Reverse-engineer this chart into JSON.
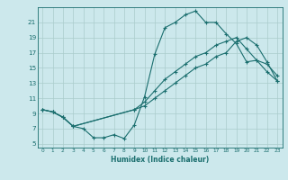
{
  "title": "",
  "xlabel": "Humidex (Indice chaleur)",
  "bg_color": "#cce8ec",
  "grid_color": "#aacccc",
  "line_color": "#1a6e6e",
  "xlim": [
    -0.5,
    23.5
  ],
  "ylim": [
    4.5,
    23.0
  ],
  "xticks": [
    0,
    1,
    2,
    3,
    4,
    5,
    6,
    7,
    8,
    9,
    10,
    11,
    12,
    13,
    14,
    15,
    16,
    17,
    18,
    19,
    20,
    21,
    22,
    23
  ],
  "yticks": [
    5,
    7,
    9,
    11,
    13,
    15,
    17,
    19,
    21
  ],
  "curve1_x": [
    0,
    1,
    2,
    3,
    4,
    5,
    6,
    7,
    8,
    9,
    10,
    11,
    12,
    13,
    14,
    15,
    16,
    17,
    18,
    19,
    20,
    21,
    22,
    23
  ],
  "curve1_y": [
    9.5,
    9.2,
    8.5,
    7.3,
    7.0,
    5.8,
    5.8,
    6.2,
    5.7,
    7.5,
    11.2,
    16.8,
    20.3,
    21.0,
    22.0,
    22.5,
    21.0,
    21.0,
    19.5,
    18.2,
    15.8,
    16.0,
    14.5,
    13.3
  ],
  "curve2_x": [
    0,
    1,
    2,
    3,
    9,
    10,
    11,
    12,
    13,
    14,
    15,
    16,
    17,
    18,
    19,
    20,
    21,
    22,
    23
  ],
  "curve2_y": [
    9.5,
    9.2,
    8.5,
    7.3,
    9.5,
    10.5,
    12.0,
    13.5,
    14.5,
    15.5,
    16.5,
    17.0,
    18.0,
    18.5,
    19.0,
    17.5,
    16.0,
    15.5,
    14.0
  ],
  "curve3_x": [
    0,
    1,
    2,
    3,
    9,
    10,
    11,
    12,
    13,
    14,
    15,
    16,
    17,
    18,
    19,
    20,
    21,
    22,
    23
  ],
  "curve3_y": [
    9.5,
    9.2,
    8.5,
    7.3,
    9.5,
    10.0,
    11.0,
    12.0,
    13.0,
    14.0,
    15.0,
    15.5,
    16.5,
    17.0,
    18.5,
    19.0,
    18.0,
    15.8,
    13.3
  ],
  "xlabel_fontsize": 5.5,
  "tick_fontsize_x": 4.2,
  "tick_fontsize_y": 5.2
}
